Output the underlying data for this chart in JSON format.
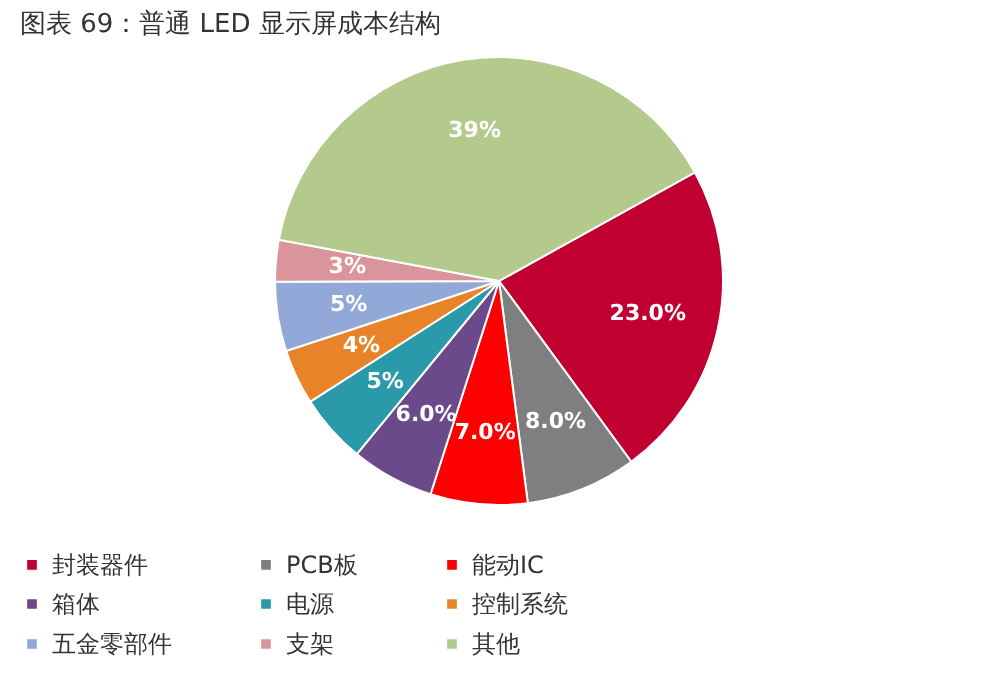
{
  "chart_data": {
    "type": "pie",
    "title": "图表 69：普通 LED 显示屏成本结构",
    "categories": [
      "封装器件",
      "PCB板",
      "能动IC",
      "箱体",
      "电源",
      "控制系统",
      "五金零部件",
      "支架",
      "其他"
    ],
    "values": [
      23.0,
      8.0,
      7.0,
      6.0,
      5,
      4,
      5,
      3,
      39
    ],
    "value_labels": [
      "23.0%",
      "8.0%",
      "7.0%",
      "6.0%",
      "5%",
      "4%",
      "5%",
      "3%",
      "39%"
    ],
    "colors": [
      "#c00030",
      "#7f7f7f",
      "#ff0000",
      "#6b4a8c",
      "#2a9aaa",
      "#e8832a",
      "#92a8d8",
      "#d9959b",
      "#b4c98c"
    ],
    "legend": "bottom"
  }
}
